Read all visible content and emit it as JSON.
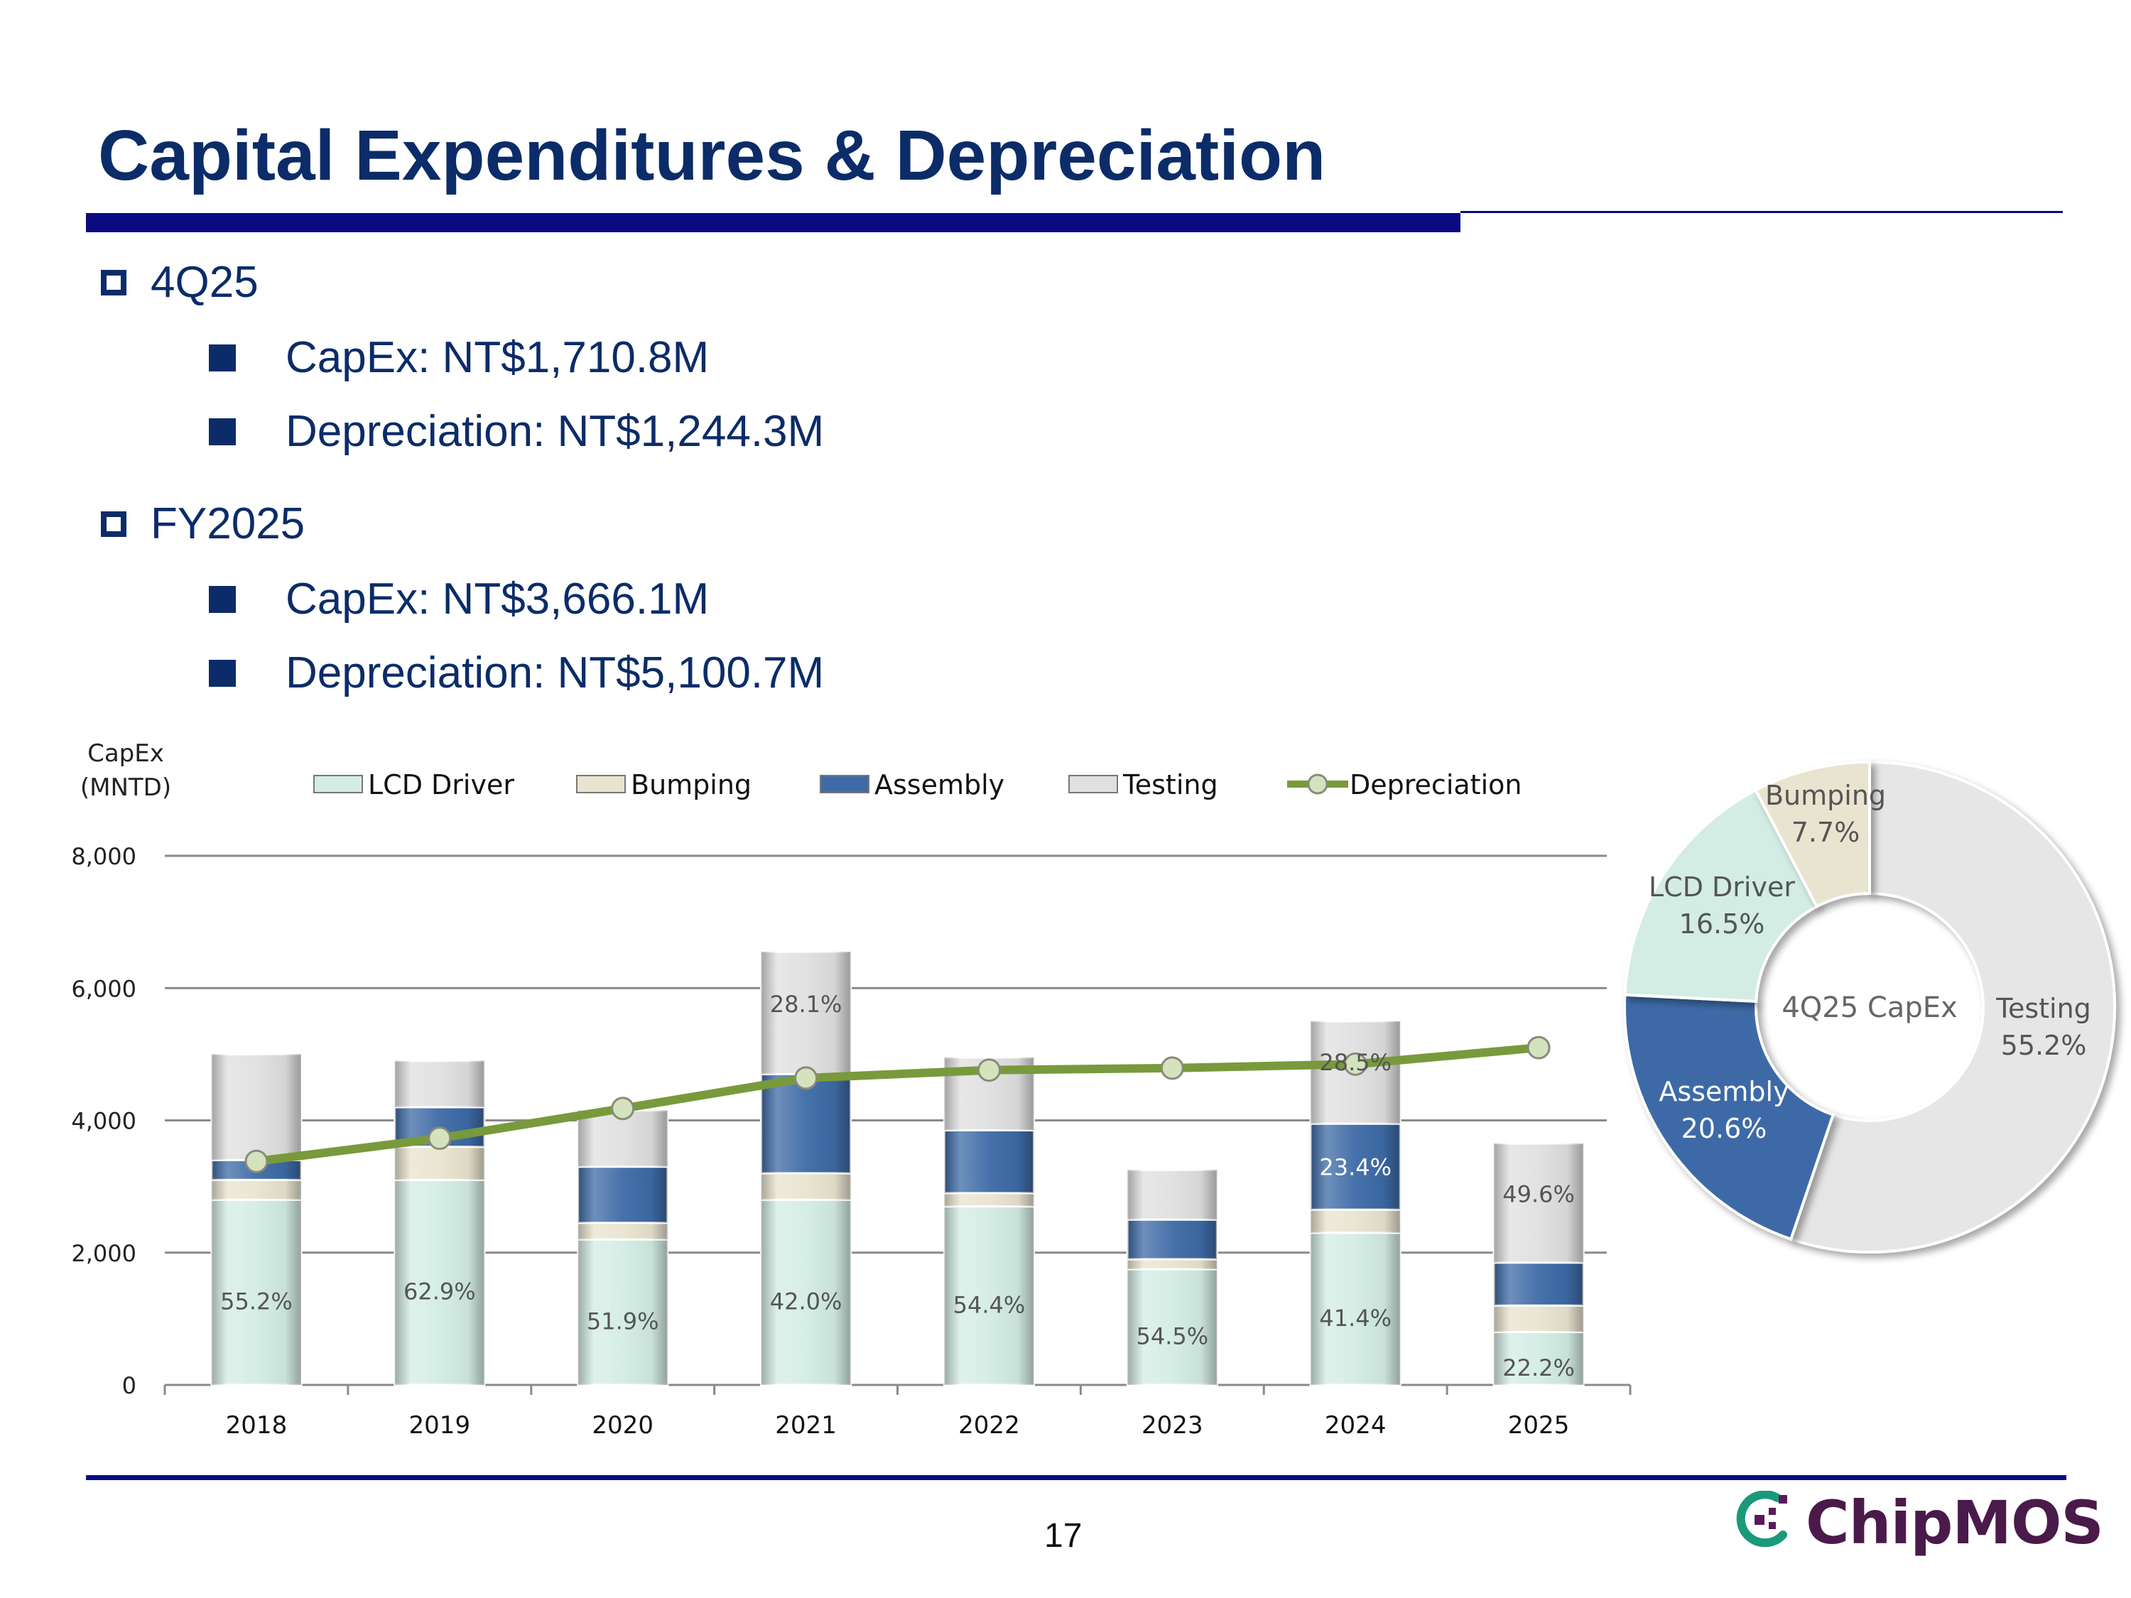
{
  "page": {
    "title": "Capital Expenditures & Depreciation",
    "page_number": "17",
    "logo_text": "ChipMOS",
    "accent_color": "#0a0a82",
    "text_color": "#0b2c68"
  },
  "sections": [
    {
      "heading": "4Q25",
      "items": [
        "CapEx: NT$1,710.8M",
        "Depreciation: NT$1,244.3M"
      ]
    },
    {
      "heading": "FY2025",
      "items": [
        "CapEx: NT$3,666.1M",
        "Depreciation: NT$5,100.7M"
      ]
    }
  ],
  "chart_data": [
    {
      "type": "bar",
      "stacked": true,
      "ylabel": "CapEx\n(MNTD)",
      "ylim": [
        0,
        8000
      ],
      "yticks": [
        0,
        2000,
        4000,
        6000,
        8000
      ],
      "ytick_labels": [
        "0",
        "2,000",
        "4,000",
        "6,000",
        "8,000"
      ],
      "grid": true,
      "legend_position": "top",
      "categories": [
        "2018",
        "2019",
        "2020",
        "2021",
        "2022",
        "2023",
        "2024",
        "2025"
      ],
      "series": [
        {
          "name": "LCD Driver",
          "color": "#d3ede4",
          "values": [
            2800,
            3100,
            2200,
            2800,
            2700,
            1750,
            2300,
            800
          ]
        },
        {
          "name": "Bumping",
          "color": "#e9e4cf",
          "values": [
            300,
            500,
            250,
            400,
            200,
            150,
            350,
            400
          ]
        },
        {
          "name": "Assembly",
          "color": "#3d6aa6",
          "values": [
            300,
            600,
            850,
            1500,
            950,
            600,
            1300,
            650
          ]
        },
        {
          "name": "Testing",
          "color": "#e0e0e0",
          "values": [
            1600,
            700,
            850,
            1850,
            1100,
            750,
            1550,
            1800
          ]
        },
        {
          "name": "Depreciation",
          "type": "line",
          "color": "#789a3c",
          "values": [
            3380,
            3730,
            4180,
            4640,
            4760,
            4790,
            4850,
            5100
          ]
        }
      ],
      "annotations": [
        {
          "category": "2018",
          "series": "LCD Driver",
          "text": "55.2%"
        },
        {
          "category": "2019",
          "series": "LCD Driver",
          "text": "62.9%"
        },
        {
          "category": "2020",
          "series": "LCD Driver",
          "text": "51.9%"
        },
        {
          "category": "2021",
          "series": "LCD Driver",
          "text": "42.0%"
        },
        {
          "category": "2021",
          "series": "Testing",
          "text": "28.1%"
        },
        {
          "category": "2022",
          "series": "LCD Driver",
          "text": "54.4%"
        },
        {
          "category": "2023",
          "series": "LCD Driver",
          "text": "54.5%"
        },
        {
          "category": "2024",
          "series": "LCD Driver",
          "text": "41.4%"
        },
        {
          "category": "2024",
          "series": "Assembly",
          "text": "23.4%"
        },
        {
          "category": "2024",
          "series": "Testing",
          "text": "28.5%"
        },
        {
          "category": "2025",
          "series": "LCD Driver",
          "text": "22.2%"
        },
        {
          "category": "2025",
          "series": "Testing",
          "text": "49.6%"
        }
      ]
    },
    {
      "type": "pie",
      "donut": true,
      "title": "4Q25 CapEx",
      "slices": [
        {
          "label": "Testing",
          "value": 55.2,
          "text": "55.2%",
          "color": "#e6e6e6"
        },
        {
          "label": "Assembly",
          "value": 20.6,
          "text": "20.6%",
          "color": "#3d6aa6"
        },
        {
          "label": "LCD Driver",
          "value": 16.5,
          "text": "16.5%",
          "color": "#d3ede4"
        },
        {
          "label": "Bumping",
          "value": 7.7,
          "text": "7.7%",
          "color": "#e9e4cf"
        }
      ]
    }
  ]
}
